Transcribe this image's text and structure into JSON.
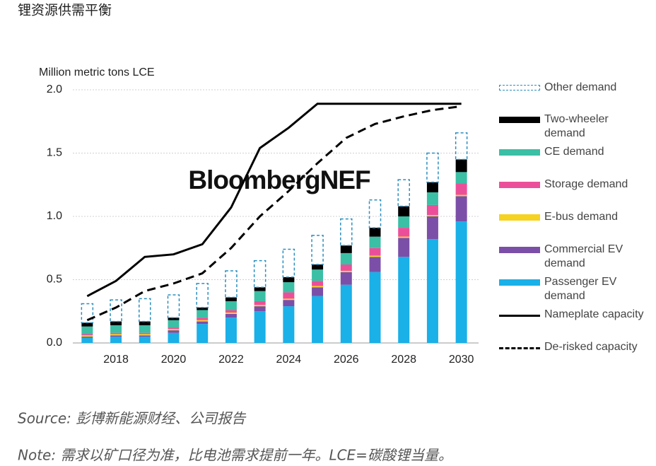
{
  "title": "锂资源供需平衡",
  "chart_data": {
    "type": "bar",
    "stacked": true,
    "y_label": "Million metric tons LCE",
    "watermark": "BloombergNEF",
    "categories": [
      null,
      "2018",
      null,
      "2020",
      null,
      "2022",
      null,
      "2024",
      null,
      "2026",
      null,
      "2028",
      null,
      "2030"
    ],
    "ylim": [
      0,
      2.0
    ],
    "yticks": [
      {
        "value": 0,
        "label": "0.0"
      },
      {
        "value": 0.5,
        "label": "0.5"
      },
      {
        "value": 1,
        "label": "1.0"
      },
      {
        "value": 1.5,
        "label": "1.5"
      },
      {
        "value": 2,
        "label": "2.0"
      }
    ],
    "grid": true,
    "series": [
      {
        "name": "Passenger EV demand",
        "type": "bar",
        "color": "#1ab0e8",
        "values": [
          0.04,
          0.05,
          0.05,
          0.08,
          0.15,
          0.2,
          0.25,
          0.29,
          0.37,
          0.46,
          0.56,
          0.68,
          0.82,
          0.96
        ]
      },
      {
        "name": "Commercial EV demand",
        "type": "bar",
        "color": "#7b4fa8",
        "values": [
          0.01,
          0.01,
          0.01,
          0.02,
          0.02,
          0.03,
          0.04,
          0.05,
          0.07,
          0.1,
          0.12,
          0.15,
          0.18,
          0.2
        ]
      },
      {
        "name": "E-bus demand",
        "type": "bar",
        "color": "#f5d320",
        "values": [
          0.01,
          0.01,
          0.01,
          0.01,
          0.01,
          0.01,
          0.01,
          0.01,
          0.01,
          0.01,
          0.01,
          0.01,
          0.01,
          0.01
        ]
      },
      {
        "name": "Storage demand",
        "type": "bar",
        "color": "#ec4f9a",
        "values": [
          0.01,
          0.01,
          0.01,
          0.01,
          0.02,
          0.02,
          0.03,
          0.05,
          0.04,
          0.05,
          0.06,
          0.07,
          0.08,
          0.09
        ]
      },
      {
        "name": "CE demand",
        "type": "bar",
        "color": "#3bbfa5",
        "values": [
          0.06,
          0.06,
          0.06,
          0.06,
          0.06,
          0.07,
          0.08,
          0.08,
          0.09,
          0.09,
          0.09,
          0.09,
          0.1,
          0.09
        ]
      },
      {
        "name": "Two-wheeler demand",
        "type": "bar",
        "color": "#000000",
        "values": [
          0.03,
          0.03,
          0.03,
          0.02,
          0.02,
          0.03,
          0.03,
          0.04,
          0.04,
          0.06,
          0.07,
          0.08,
          0.08,
          0.1
        ]
      },
      {
        "name": "Other demand",
        "type": "bar",
        "color": "#2a8fc0",
        "dashed": true,
        "values": [
          0.15,
          0.17,
          0.18,
          0.18,
          0.19,
          0.21,
          0.21,
          0.22,
          0.23,
          0.21,
          0.22,
          0.21,
          0.23,
          0.21
        ]
      },
      {
        "name": "Nameplate capacity",
        "type": "line",
        "color": "#000000",
        "values": [
          0.37,
          0.49,
          0.68,
          0.7,
          0.78,
          1.07,
          1.54,
          1.7,
          1.89,
          1.89,
          1.89,
          1.89,
          1.89,
          1.89
        ]
      },
      {
        "name": "De-risked capacity",
        "type": "line",
        "color": "#000000",
        "dashed": true,
        "values": [
          0.18,
          0.28,
          0.41,
          0.47,
          0.55,
          0.75,
          1.0,
          1.2,
          1.42,
          1.62,
          1.73,
          1.79,
          1.84,
          1.87
        ]
      }
    ]
  },
  "source": "Source: 彭博新能源财经、公司报告",
  "note": "Note: 需求以矿口径为准，比电池需求提前一年。LCE=碳酸锂当量。"
}
